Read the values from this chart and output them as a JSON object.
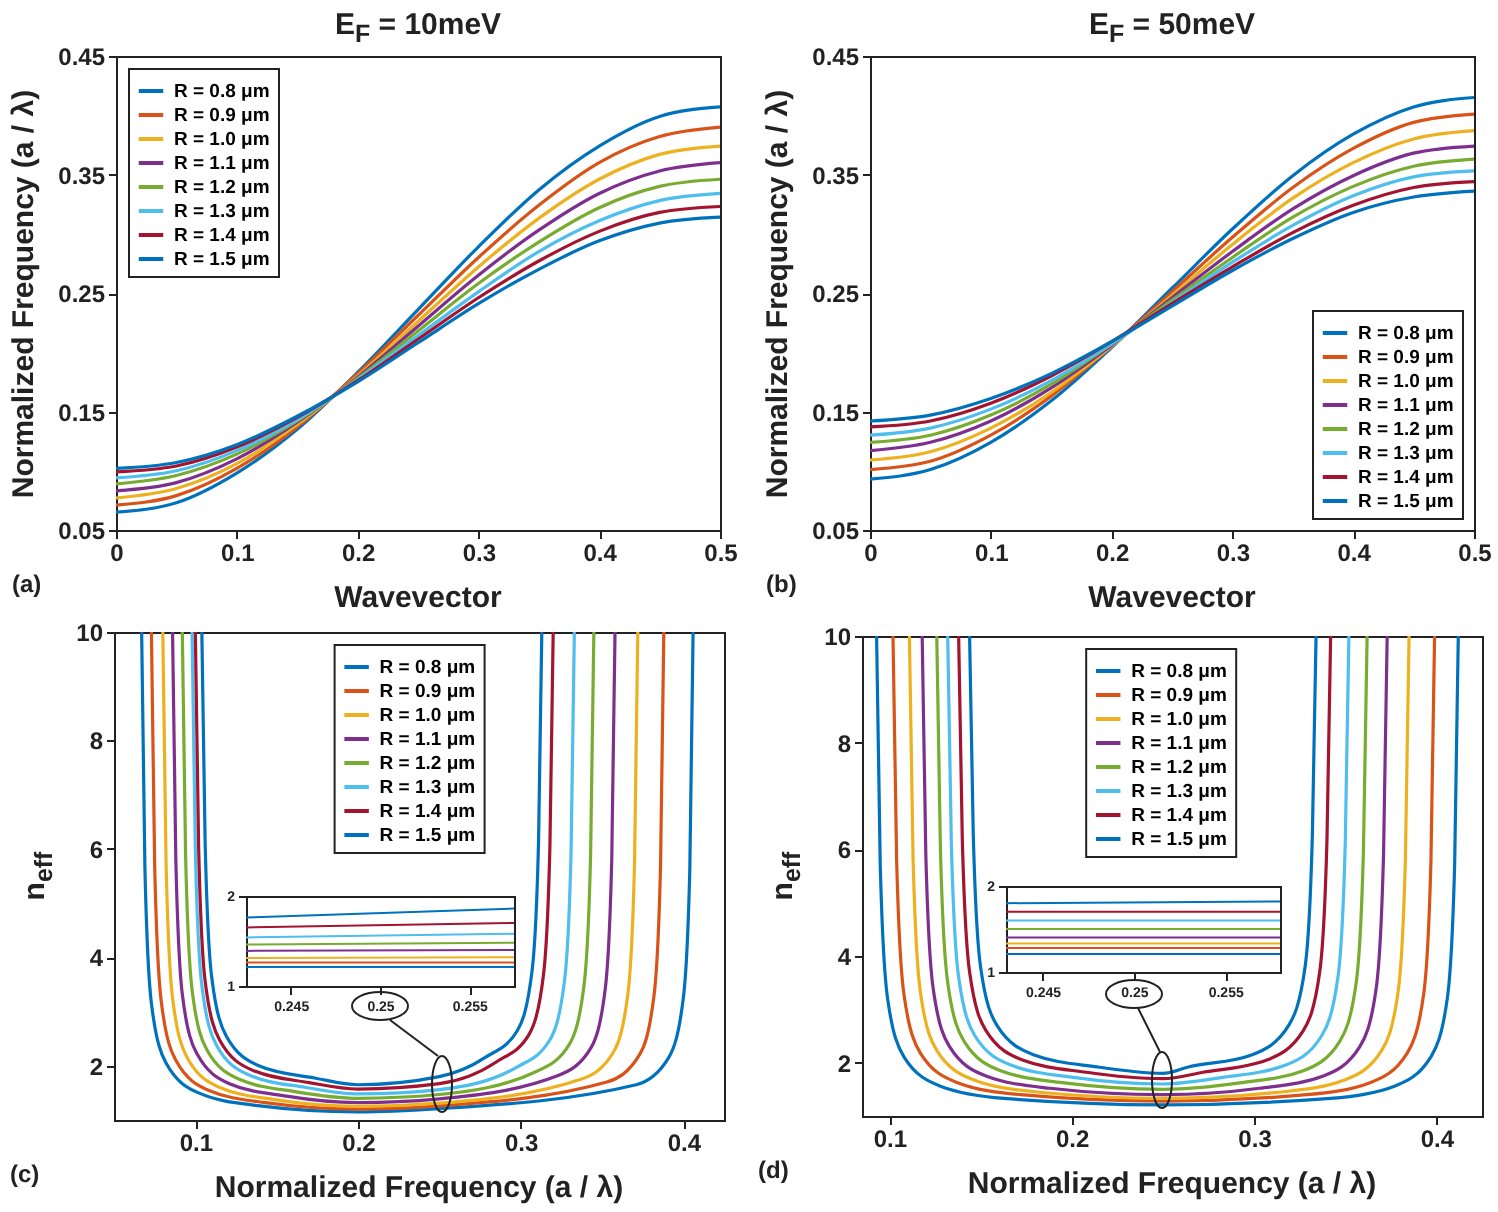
{
  "chart_data": [
    {
      "type": "line",
      "title": "E$_{F}$ = 10meV",
      "xlabel": "Wavevector",
      "ylabel": "Normalized Frequency (a / λ)",
      "annotations": [
        "(a)"
      ],
      "legend": "top left",
      "xlim": [
        0,
        0.5
      ],
      "xticks": [
        0,
        0.1,
        0.2,
        0.3,
        0.4,
        0.5
      ],
      "ylim": [
        0.05,
        0.45
      ],
      "yticks": [
        0.05,
        0.15,
        0.25,
        0.35,
        0.45
      ],
      "x": [
        0,
        0.05,
        0.1,
        0.15,
        0.2,
        0.25,
        0.3,
        0.35,
        0.4,
        0.45,
        0.5
      ],
      "series": [
        {
          "name": "R = 0.8 μm",
          "color": "#0072bd",
          "values": [
            0.065,
            0.073,
            0.098,
            0.135,
            0.183,
            0.236,
            0.289,
            0.337,
            0.374,
            0.399,
            0.407
          ]
        },
        {
          "name": "R = 0.9 μm",
          "color": "#d95319",
          "values": [
            0.071,
            0.079,
            0.102,
            0.137,
            0.182,
            0.231,
            0.28,
            0.324,
            0.36,
            0.382,
            0.39
          ]
        },
        {
          "name": "R = 1.0 μm",
          "color": "#edb120",
          "values": [
            0.077,
            0.085,
            0.106,
            0.139,
            0.18,
            0.226,
            0.272,
            0.313,
            0.346,
            0.367,
            0.374
          ]
        },
        {
          "name": "R = 1.1 μm",
          "color": "#7e2f8e",
          "values": [
            0.083,
            0.09,
            0.11,
            0.141,
            0.179,
            0.222,
            0.265,
            0.303,
            0.334,
            0.353,
            0.36
          ]
        },
        {
          "name": "R = 1.2 μm",
          "color": "#77ac30",
          "values": [
            0.089,
            0.096,
            0.114,
            0.142,
            0.178,
            0.218,
            0.258,
            0.293,
            0.322,
            0.34,
            0.346
          ]
        },
        {
          "name": "R = 1.3 μm",
          "color": "#4dbeee",
          "values": [
            0.094,
            0.1,
            0.117,
            0.143,
            0.177,
            0.214,
            0.251,
            0.285,
            0.311,
            0.328,
            0.334
          ]
        },
        {
          "name": "R = 1.4 μm",
          "color": "#a2142f",
          "values": [
            0.099,
            0.104,
            0.12,
            0.145,
            0.176,
            0.211,
            0.246,
            0.277,
            0.302,
            0.318,
            0.323
          ]
        },
        {
          "name": "R = 1.5 μm",
          "color": "#0072bd",
          "values": [
            0.102,
            0.107,
            0.122,
            0.146,
            0.175,
            0.208,
            0.241,
            0.27,
            0.294,
            0.309,
            0.314
          ]
        }
      ]
    },
    {
      "type": "line",
      "title": "E$_{F}$ = 50meV",
      "xlabel": "Wavevector",
      "ylabel": "Normalized Frequency (a / λ)",
      "annotations": [
        "(b)"
      ],
      "legend": "bottom right",
      "xlim": [
        0,
        0.5
      ],
      "xticks": [
        0,
        0.1,
        0.2,
        0.3,
        0.4,
        0.5
      ],
      "ylim": [
        0.05,
        0.45
      ],
      "yticks": [
        0.05,
        0.15,
        0.25,
        0.35,
        0.45
      ],
      "x": [
        0,
        0.05,
        0.1,
        0.15,
        0.2,
        0.25,
        0.3,
        0.35,
        0.4,
        0.45,
        0.5
      ],
      "series": [
        {
          "name": "R = 0.8 μm",
          "color": "#0072bd",
          "values": [
            0.093,
            0.101,
            0.124,
            0.159,
            0.204,
            0.254,
            0.304,
            0.349,
            0.384,
            0.407,
            0.415
          ]
        },
        {
          "name": "R = 0.9 μm",
          "color": "#d95319",
          "values": [
            0.101,
            0.108,
            0.13,
            0.163,
            0.205,
            0.251,
            0.297,
            0.339,
            0.372,
            0.394,
            0.401
          ]
        },
        {
          "name": "R = 1.0 μm",
          "color": "#edb120",
          "values": [
            0.109,
            0.116,
            0.136,
            0.166,
            0.205,
            0.248,
            0.291,
            0.33,
            0.36,
            0.38,
            0.387
          ]
        },
        {
          "name": "R = 1.1 μm",
          "color": "#7e2f8e",
          "values": [
            0.117,
            0.124,
            0.142,
            0.17,
            0.206,
            0.246,
            0.285,
            0.321,
            0.349,
            0.368,
            0.374
          ]
        },
        {
          "name": "R = 1.2 μm",
          "color": "#77ac30",
          "values": [
            0.124,
            0.13,
            0.147,
            0.173,
            0.207,
            0.244,
            0.28,
            0.314,
            0.34,
            0.357,
            0.363
          ]
        },
        {
          "name": "R = 1.3 μm",
          "color": "#4dbeee",
          "values": [
            0.13,
            0.136,
            0.152,
            0.176,
            0.207,
            0.242,
            0.276,
            0.307,
            0.332,
            0.348,
            0.353
          ]
        },
        {
          "name": "R = 1.4 μm",
          "color": "#a2142f",
          "values": [
            0.137,
            0.142,
            0.157,
            0.18,
            0.209,
            0.241,
            0.272,
            0.301,
            0.324,
            0.339,
            0.344
          ]
        },
        {
          "name": "R = 1.5 μm",
          "color": "#0072bd",
          "values": [
            0.142,
            0.147,
            0.161,
            0.182,
            0.209,
            0.239,
            0.269,
            0.296,
            0.318,
            0.331,
            0.336
          ]
        }
      ]
    },
    {
      "type": "line",
      "xlabel": "Normalized Frequency (a / λ)",
      "ylabel": "n$_{eff}$",
      "annotations": [
        "(c)"
      ],
      "legend": "top",
      "xlim": [
        0.05,
        0.425
      ],
      "xticks": [
        0.1,
        0.2,
        0.3,
        0.4
      ],
      "ylim": [
        1,
        10
      ],
      "yticks": [
        2,
        4,
        6,
        8,
        10
      ],
      "series": [
        {
          "name": "R = 0.8 μm",
          "color": "#0072bd",
          "x": [
            0.067,
            0.069,
            0.073,
            0.082,
            0.102,
            0.137,
            0.2,
            0.25,
            0.371,
            0.391,
            0.4,
            0.404,
            0.406
          ],
          "values": [
            10,
            5.65,
            3.15,
            2.05,
            1.5,
            1.27,
            1.15,
            1.21,
            1.65,
            2.15,
            3.25,
            5.65,
            10
          ]
        },
        {
          "name": "R = 0.9 μm",
          "color": "#d95319",
          "x": [
            0.073,
            0.075,
            0.079,
            0.088,
            0.108,
            0.143,
            0.2,
            0.25,
            0.353,
            0.373,
            0.382,
            0.386,
            0.388
          ],
          "values": [
            10,
            5.7,
            3.2,
            2.1,
            1.55,
            1.32,
            1.2,
            1.26,
            1.7,
            2.2,
            3.3,
            5.7,
            10
          ]
        },
        {
          "name": "R = 1.0 μm",
          "color": "#edb120",
          "x": [
            0.08,
            0.082,
            0.086,
            0.095,
            0.115,
            0.15,
            0.2,
            0.25,
            0.337,
            0.357,
            0.366,
            0.37,
            0.372
          ],
          "values": [
            10,
            5.75,
            3.25,
            2.15,
            1.6,
            1.37,
            1.25,
            1.31,
            1.75,
            2.25,
            3.35,
            5.75,
            10
          ]
        },
        {
          "name": "R = 1.1 μm",
          "color": "#7e2f8e",
          "x": [
            0.086,
            0.088,
            0.092,
            0.101,
            0.121,
            0.156,
            0.2,
            0.25,
            0.323,
            0.343,
            0.352,
            0.356,
            0.358
          ],
          "values": [
            10,
            5.82,
            3.32,
            2.22,
            1.67,
            1.44,
            1.32,
            1.39,
            1.82,
            2.32,
            3.42,
            5.82,
            10
          ]
        },
        {
          "name": "R = 1.2 μm",
          "color": "#77ac30",
          "x": [
            0.092,
            0.094,
            0.098,
            0.107,
            0.127,
            0.162,
            0.2,
            0.25,
            0.31,
            0.33,
            0.339,
            0.343,
            0.345
          ],
          "values": [
            10,
            5.9,
            3.4,
            2.3,
            1.75,
            1.52,
            1.4,
            1.47,
            1.9,
            2.4,
            3.5,
            5.9,
            10
          ]
        },
        {
          "name": "R = 1.3 μm",
          "color": "#4dbeee",
          "x": [
            0.098,
            0.1,
            0.104,
            0.113,
            0.133,
            0.168,
            0.2,
            0.25,
            0.298,
            0.318,
            0.327,
            0.331,
            0.333
          ],
          "values": [
            10,
            5.98,
            3.48,
            2.38,
            1.83,
            1.6,
            1.48,
            1.56,
            1.98,
            2.48,
            3.58,
            5.98,
            10
          ]
        },
        {
          "name": "R = 1.4 μm",
          "color": "#a2142f",
          "x": [
            0.1,
            0.102,
            0.106,
            0.115,
            0.135,
            0.17,
            0.2,
            0.25,
            0.285,
            0.305,
            0.314,
            0.318,
            0.32
          ],
          "values": [
            10,
            6.07,
            3.57,
            2.47,
            1.92,
            1.69,
            1.57,
            1.67,
            2.07,
            2.57,
            3.67,
            6.07,
            10
          ]
        },
        {
          "name": "R = 1.5 μm",
          "color": "#0072bd",
          "x": [
            0.104,
            0.106,
            0.11,
            0.119,
            0.139,
            0.174,
            0.2,
            0.25,
            0.278,
            0.298,
            0.307,
            0.311,
            0.313
          ],
          "values": [
            10,
            6.15,
            3.65,
            2.55,
            2,
            1.77,
            1.65,
            1.8,
            2.15,
            2.65,
            3.75,
            6.15,
            10
          ]
        }
      ]
    },
    {
      "type": "line",
      "xlabel": "Normalized Frequency (a / λ)",
      "ylabel": "n$_{eff}$",
      "annotations": [
        "(d)"
      ],
      "legend": "top",
      "xlim": [
        0.085,
        0.425
      ],
      "xticks": [
        0.1,
        0.2,
        0.3,
        0.4
      ],
      "ylim": [
        1,
        10
      ],
      "yticks": [
        2,
        4,
        6,
        8,
        10
      ],
      "series": [
        {
          "name": "R = 0.8 μm",
          "color": "#0072bd",
          "x": [
            0.093,
            0.095,
            0.099,
            0.108,
            0.128,
            0.163,
            0.25,
            0.342,
            0.377,
            0.397,
            0.406,
            0.41,
            0.412
          ],
          "values": [
            10,
            5.71,
            3.21,
            2.11,
            1.56,
            1.33,
            1.21,
            1.33,
            1.56,
            2.11,
            3.21,
            5.71,
            10
          ]
        },
        {
          "name": "R = 0.9 μm",
          "color": "#d95319",
          "x": [
            0.102,
            0.104,
            0.108,
            0.117,
            0.137,
            0.172,
            0.25,
            0.329,
            0.364,
            0.384,
            0.393,
            0.397,
            0.399
          ],
          "values": [
            10,
            5.78,
            3.28,
            2.18,
            1.63,
            1.4,
            1.28,
            1.4,
            1.63,
            2.18,
            3.28,
            5.78,
            10
          ]
        },
        {
          "name": "R = 1.0 μm",
          "color": "#edb120",
          "x": [
            0.111,
            0.113,
            0.117,
            0.126,
            0.146,
            0.181,
            0.25,
            0.315,
            0.35,
            0.37,
            0.379,
            0.383,
            0.385
          ],
          "values": [
            10,
            5.83,
            3.33,
            2.23,
            1.68,
            1.45,
            1.33,
            1.45,
            1.68,
            2.23,
            3.33,
            5.83,
            10
          ]
        },
        {
          "name": "R = 1.1 μm",
          "color": "#7e2f8e",
          "x": [
            0.118,
            0.12,
            0.124,
            0.133,
            0.153,
            0.188,
            0.25,
            0.303,
            0.338,
            0.358,
            0.367,
            0.371,
            0.373
          ],
          "values": [
            10,
            5.9,
            3.4,
            2.3,
            1.75,
            1.52,
            1.4,
            1.52,
            1.75,
            2.3,
            3.4,
            5.9,
            10
          ]
        },
        {
          "name": "R = 1.2 μm",
          "color": "#77ac30",
          "x": [
            0.126,
            0.128,
            0.132,
            0.141,
            0.161,
            0.196,
            0.25,
            0.292,
            0.327,
            0.347,
            0.356,
            0.36,
            0.362
          ],
          "values": [
            10,
            6,
            3.5,
            2.4,
            1.85,
            1.62,
            1.5,
            1.62,
            1.85,
            2.4,
            3.5,
            6,
            10
          ]
        },
        {
          "name": "R = 1.3 μm",
          "color": "#4dbeee",
          "x": [
            0.132,
            0.134,
            0.138,
            0.147,
            0.167,
            0.202,
            0.25,
            0.282,
            0.317,
            0.337,
            0.346,
            0.35,
            0.352
          ],
          "values": [
            10,
            6.1,
            3.6,
            2.5,
            1.95,
            1.72,
            1.6,
            1.72,
            1.95,
            2.5,
            3.6,
            6.1,
            10
          ]
        },
        {
          "name": "R = 1.4 μm",
          "color": "#a2142f",
          "x": [
            0.138,
            0.14,
            0.144,
            0.153,
            0.173,
            0.208,
            0.25,
            0.272,
            0.307,
            0.327,
            0.336,
            0.34,
            0.342
          ],
          "values": [
            10,
            6.2,
            3.7,
            2.6,
            2.05,
            1.82,
            1.7,
            1.82,
            2.05,
            2.6,
            3.7,
            6.2,
            10
          ]
        },
        {
          "name": "R = 1.5 μm",
          "color": "#0072bd",
          "x": [
            0.144,
            0.146,
            0.15,
            0.159,
            0.179,
            0.214,
            0.25,
            0.264,
            0.299,
            0.319,
            0.328,
            0.332,
            0.334
          ],
          "values": [
            10,
            6.3,
            3.8,
            2.7,
            2.15,
            1.92,
            1.8,
            1.92,
            2.15,
            2.7,
            3.8,
            6.3,
            10
          ]
        }
      ]
    },
    {
      "type": "line",
      "xlim": [
        0.2425,
        0.2575
      ],
      "xticks": [
        0.245,
        0.25,
        0.255
      ],
      "ylim": [
        1,
        2
      ],
      "yticks": [
        1,
        2
      ],
      "x": [
        0.2425,
        0.2575
      ],
      "series": [
        {
          "color": "#0072bd",
          "values": [
            1.21,
            1.21
          ]
        },
        {
          "color": "#d95319",
          "values": [
            1.26,
            1.26
          ]
        },
        {
          "color": "#edb120",
          "values": [
            1.31,
            1.32
          ]
        },
        {
          "color": "#7e2f8e",
          "values": [
            1.39,
            1.4
          ]
        },
        {
          "color": "#77ac30",
          "values": [
            1.46,
            1.48
          ]
        },
        {
          "color": "#4dbeee",
          "values": [
            1.54,
            1.58
          ]
        },
        {
          "color": "#a2142f",
          "values": [
            1.65,
            1.7
          ]
        },
        {
          "color": "#0072bd",
          "values": [
            1.76,
            1.86
          ]
        }
      ]
    },
    {
      "type": "line",
      "xlim": [
        0.243,
        0.258
      ],
      "xticks": [
        0.245,
        0.25,
        0.255
      ],
      "ylim": [
        1,
        2
      ],
      "yticks": [
        1,
        2
      ],
      "x": [
        0.243,
        0.258
      ],
      "series": [
        {
          "color": "#0072bd",
          "values": [
            1.21,
            1.21
          ]
        },
        {
          "color": "#d95319",
          "values": [
            1.28,
            1.28
          ]
        },
        {
          "color": "#edb120",
          "values": [
            1.33,
            1.33
          ]
        },
        {
          "color": "#7e2f8e",
          "values": [
            1.4,
            1.4
          ]
        },
        {
          "color": "#77ac30",
          "values": [
            1.5,
            1.5
          ]
        },
        {
          "color": "#4dbeee",
          "values": [
            1.6,
            1.6
          ]
        },
        {
          "color": "#a2142f",
          "values": [
            1.7,
            1.7
          ]
        },
        {
          "color": "#0072bd",
          "values": [
            1.8,
            1.82
          ]
        }
      ]
    }
  ]
}
